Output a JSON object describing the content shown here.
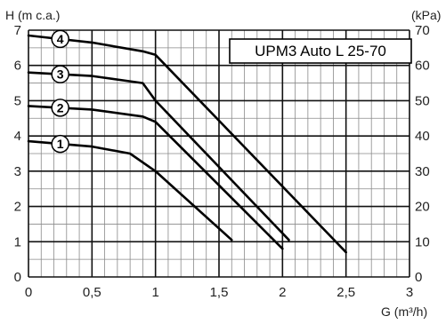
{
  "chart_data": {
    "type": "line",
    "title": "UPM3 Auto L 25-70",
    "ylabel": "H (m c.a.)",
    "ylabel_right": "(kPa)",
    "xlabel": "G (m³/h)",
    "xlim": [
      0,
      3
    ],
    "ylim": [
      0,
      7
    ],
    "ylim_right": [
      0,
      70
    ],
    "x_ticks": [
      "0",
      "0,5",
      "1",
      "1,5",
      "2",
      "2,5",
      "3"
    ],
    "y_ticks": [
      "0",
      "1",
      "2",
      "3",
      "4",
      "5",
      "6",
      "7"
    ],
    "y_ticks_right": [
      "0",
      "10",
      "20",
      "30",
      "40",
      "50",
      "60",
      "70"
    ],
    "grid": true,
    "series": [
      {
        "name": "1",
        "x": [
          0,
          0.5,
          0.8,
          1.0,
          1.6
        ],
        "y": [
          3.85,
          3.7,
          3.5,
          3.0,
          1.05
        ]
      },
      {
        "name": "2",
        "x": [
          0,
          0.5,
          0.9,
          1.0,
          2.0
        ],
        "y": [
          4.85,
          4.75,
          4.55,
          4.4,
          0.8
        ]
      },
      {
        "name": "3",
        "x": [
          0,
          0.5,
          0.9,
          1.0,
          2.05
        ],
        "y": [
          5.8,
          5.7,
          5.5,
          5.0,
          1.05
        ]
      },
      {
        "name": "4",
        "x": [
          0,
          0.5,
          0.9,
          1.0,
          2.5
        ],
        "y": [
          6.85,
          6.65,
          6.4,
          6.3,
          0.7
        ]
      }
    ]
  }
}
